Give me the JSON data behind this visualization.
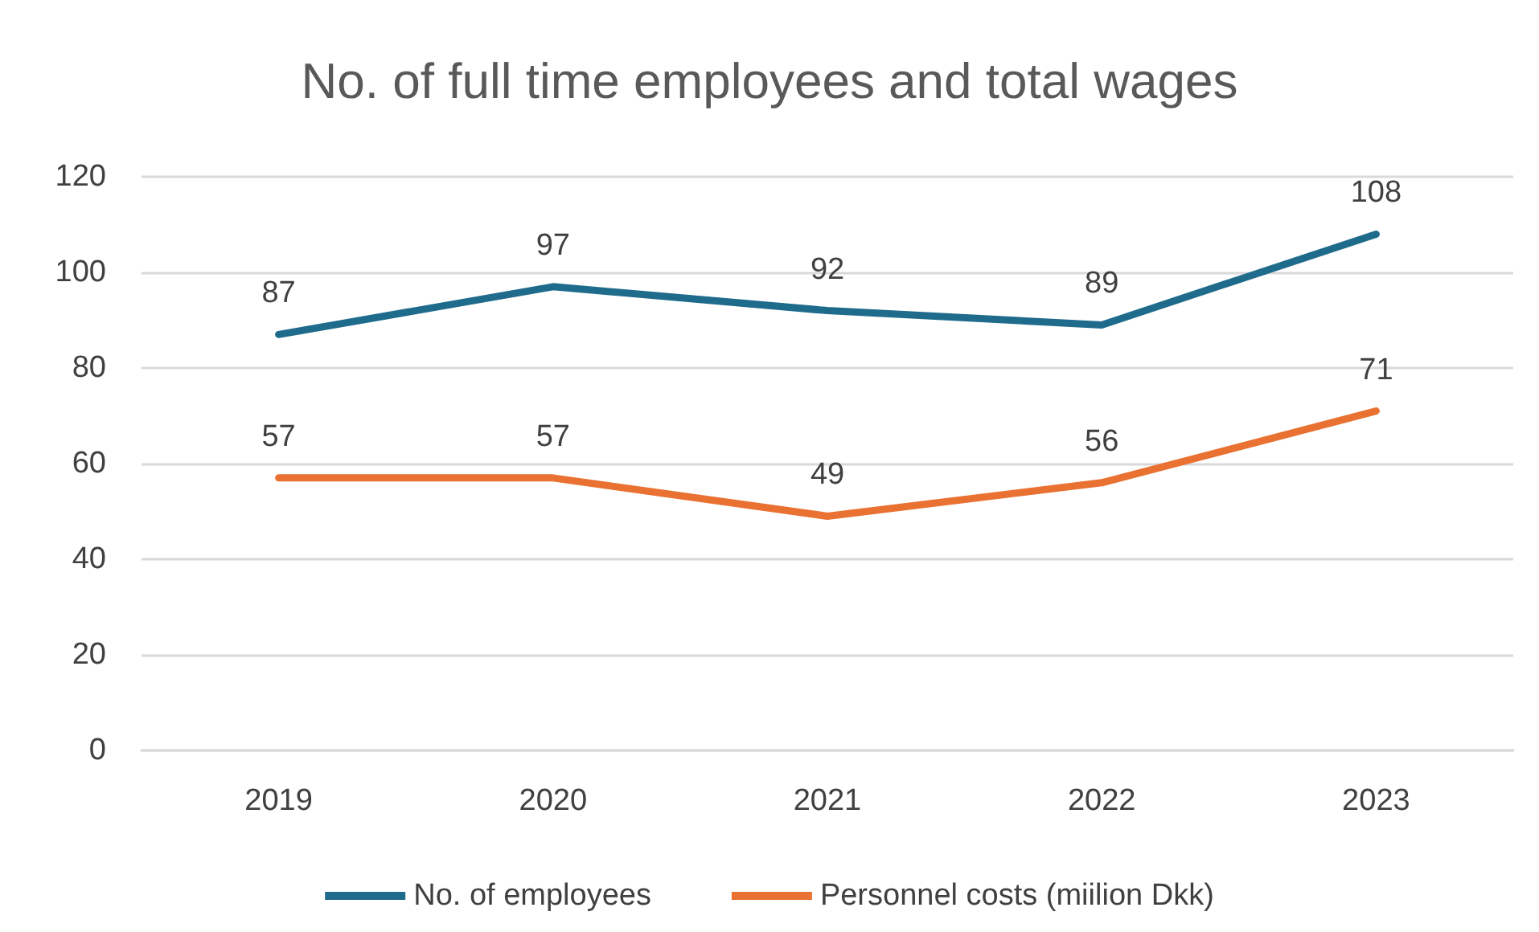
{
  "chart_data": {
    "type": "line",
    "title": "No. of full time employees and total wages",
    "categories": [
      "2019",
      "2020",
      "2021",
      "2022",
      "2023"
    ],
    "series": [
      {
        "name": "No. of employees",
        "color": "#1f6b8c",
        "values": [
          87,
          97,
          92,
          89,
          108
        ]
      },
      {
        "name": "Personnel costs (miilion Dkk)",
        "color": "#e97132",
        "values": [
          57,
          57,
          49,
          56,
          71
        ]
      }
    ],
    "ylim": [
      0,
      120
    ],
    "yticks": [
      0,
      20,
      40,
      60,
      80,
      100,
      120
    ],
    "grid": "y",
    "legend": "bottom",
    "marker": "none",
    "data_labels": true,
    "line_style": "solid"
  }
}
